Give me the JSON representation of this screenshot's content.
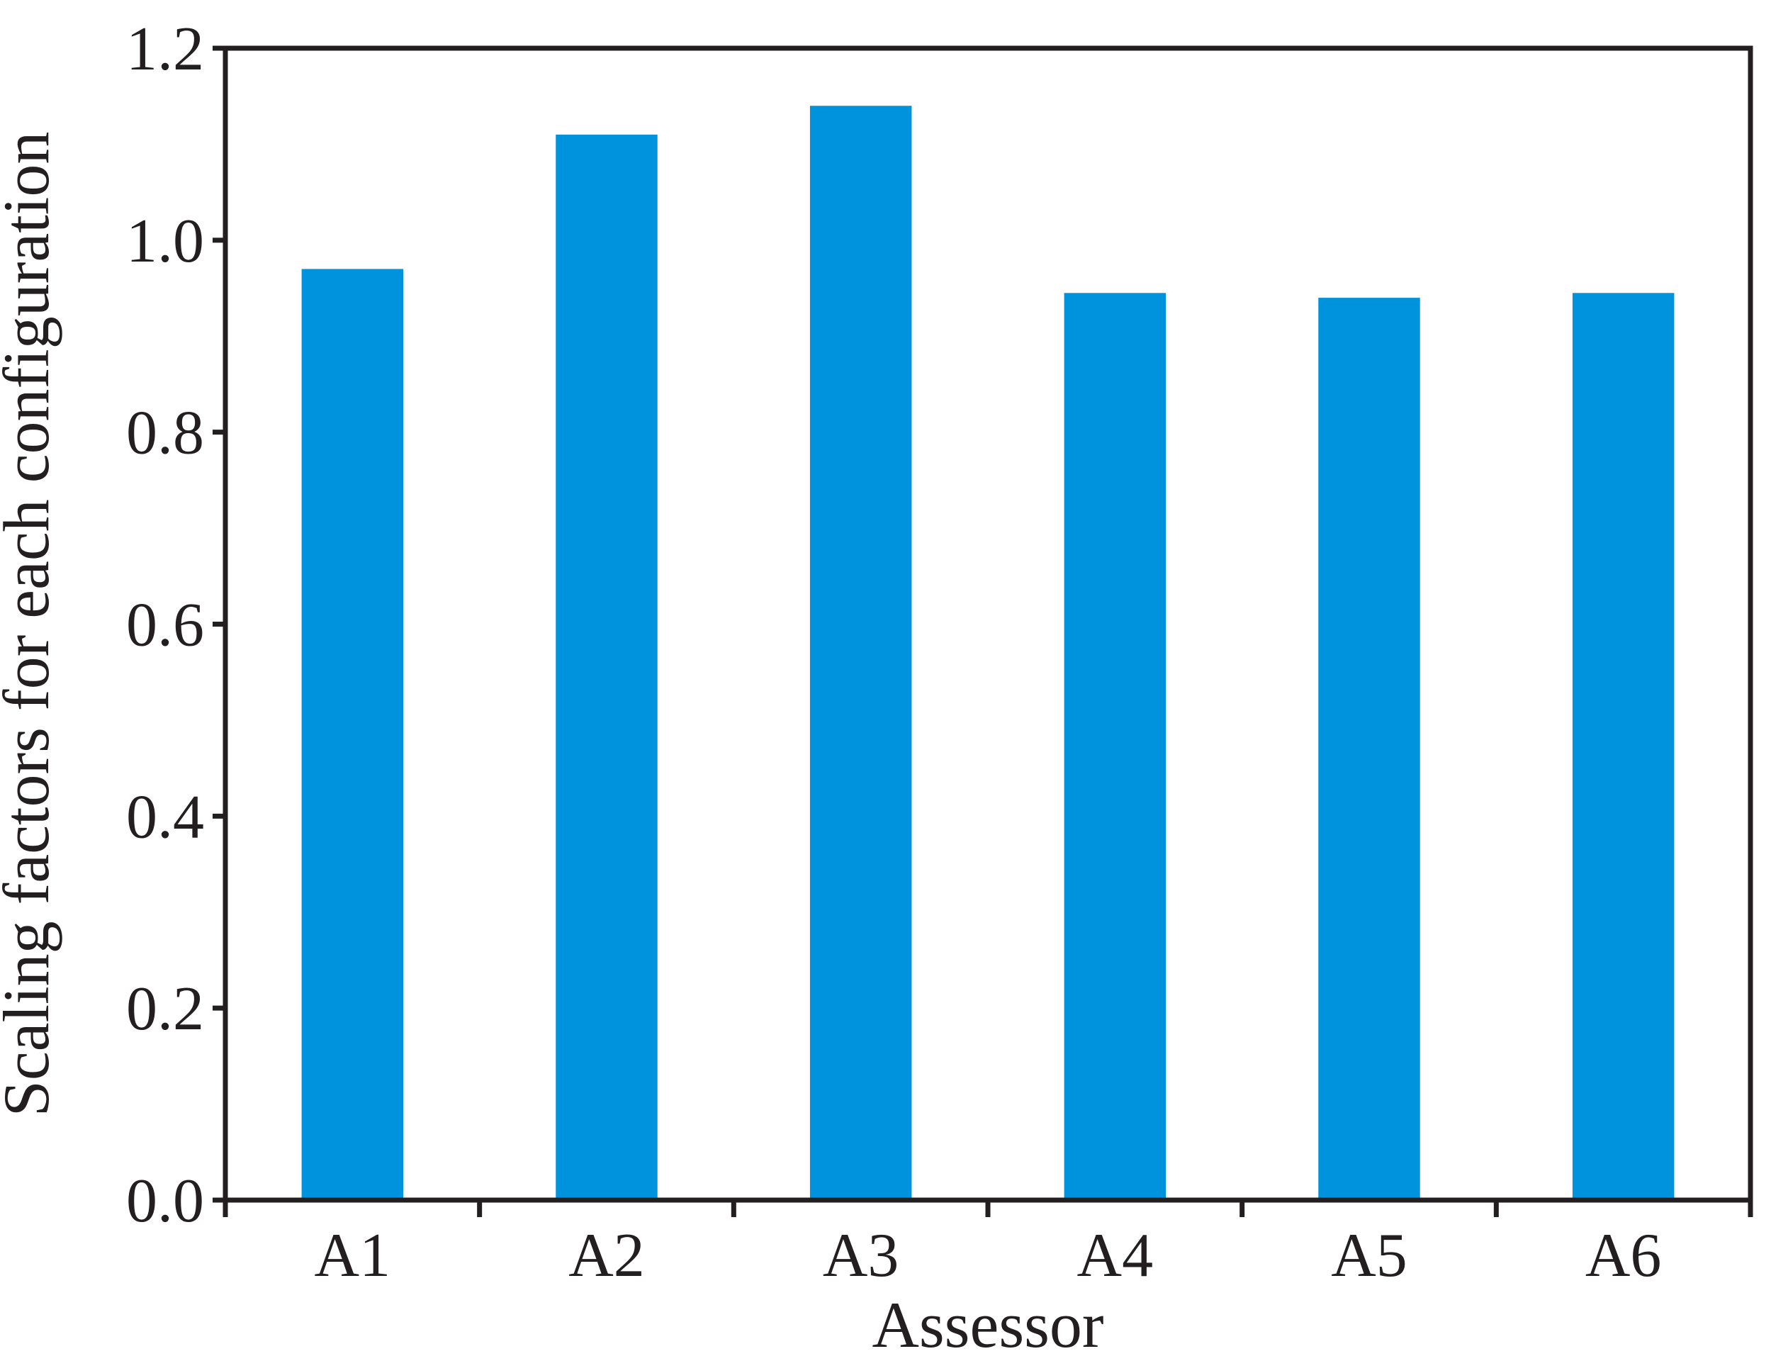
{
  "chart_data": {
    "type": "bar",
    "categories": [
      "A1",
      "A2",
      "A3",
      "A4",
      "A5",
      "A6"
    ],
    "values": [
      0.97,
      1.11,
      1.14,
      0.945,
      0.94,
      0.945
    ],
    "title": "",
    "xlabel": "Assessor",
    "ylabel": "Scaling factors for each configuration",
    "ylim": [
      0,
      1.2
    ],
    "yticks": [
      "0.0",
      "0.2",
      "0.4",
      "0.6",
      "0.8",
      "1.0",
      "1.2"
    ],
    "bar_color": "#0093dd",
    "axis_color": "#231f20",
    "grid": false,
    "legend": "none"
  }
}
